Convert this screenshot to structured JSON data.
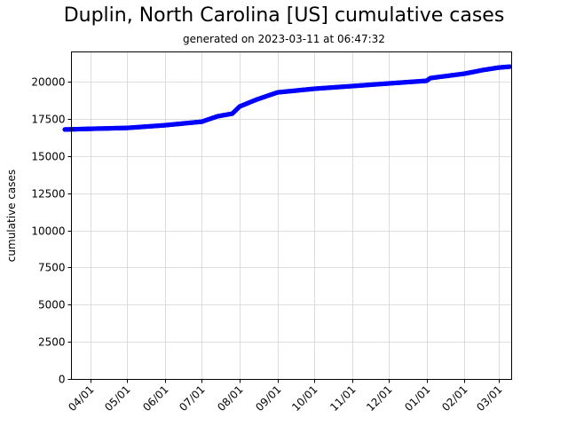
{
  "chart_data": {
    "type": "line",
    "title": "Duplin, North Carolina [US] cumulative cases",
    "subtitle": "generated on 2023-03-11 at 06:47:32",
    "xlabel": "",
    "ylabel": "cumulative cases",
    "ylim": [
      0,
      22000
    ],
    "yticks": [
      0,
      2500,
      5000,
      7500,
      10000,
      12500,
      15000,
      17500,
      20000
    ],
    "xticks": [
      "04/01",
      "05/01",
      "06/01",
      "07/01",
      "08/01",
      "09/01",
      "10/01",
      "11/01",
      "12/01",
      "01/01",
      "02/01",
      "03/01"
    ],
    "grid": true,
    "legend": null,
    "series": [
      {
        "name": "cumulative cases",
        "color": "#0000ff",
        "marker": "circle",
        "x": [
          "2022-03-11",
          "2022-04-01",
          "2022-05-01",
          "2022-06-01",
          "2022-07-01",
          "2022-07-14",
          "2022-07-26",
          "2022-08-01",
          "2022-08-15",
          "2022-09-01",
          "2022-10-01",
          "2022-11-01",
          "2022-12-01",
          "2023-01-01",
          "2023-01-04",
          "2023-02-01",
          "2023-02-16",
          "2023-03-01",
          "2023-03-10"
        ],
        "values": [
          16780,
          16830,
          16890,
          17070,
          17310,
          17670,
          17850,
          18330,
          18800,
          19280,
          19520,
          19700,
          19880,
          20060,
          20240,
          20540,
          20780,
          20950,
          21010
        ]
      }
    ]
  },
  "labels": {
    "title": "Duplin, North Carolina [US] cumulative cases",
    "subtitle": "generated on 2023-03-11 at 06:47:32",
    "ylabel": "cumulative cases"
  },
  "colors": {
    "line": "#0000ff",
    "grid": "#d3d3d3",
    "axis": "#000000"
  }
}
